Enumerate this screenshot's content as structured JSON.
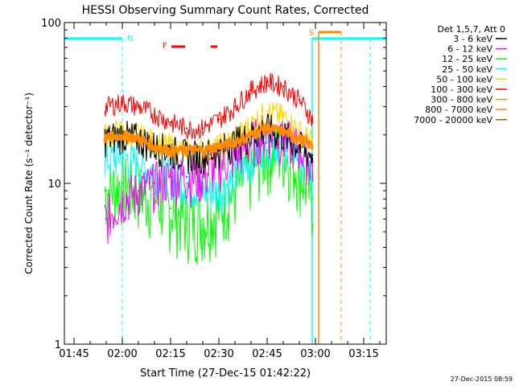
{
  "chart_data": {
    "type": "line",
    "title": "HESSI Observing Summary Count Rates, Corrected",
    "xlabel": "Start Time (27-Dec-15 01:42:22)",
    "ylabel": "Corrected Count Rate (s⁻¹ detector⁻¹)",
    "yscale": "log",
    "ylim": [
      1,
      100
    ],
    "xlim": [
      "01:42",
      "03:22"
    ],
    "x_ticks": [
      "01:45",
      "02:00",
      "02:15",
      "02:30",
      "02:45",
      "03:00",
      "03:15"
    ],
    "y_ticks": [
      "1",
      "10",
      "100"
    ],
    "legend_header": "Det 1,5,7, Att 0",
    "legend_position": "right",
    "timestamp": "27-Dec-2015 08:59",
    "time_points": [
      "01:55",
      "02:00",
      "02:05",
      "02:10",
      "02:15",
      "02:20",
      "02:25",
      "02:30",
      "02:35",
      "02:40",
      "02:45",
      "02:50",
      "02:55",
      "02:59"
    ],
    "series": [
      {
        "name": "3 - 6 keV",
        "color": "#000000",
        "values": [
          19,
          20,
          19,
          17,
          16,
          15,
          15,
          16,
          18,
          20,
          22,
          20,
          17,
          15
        ]
      },
      {
        "name": "6 - 12 keV",
        "color": "#ff00ff",
        "values": [
          6,
          8,
          9,
          10,
          11,
          11,
          11,
          13,
          15,
          18,
          21,
          19,
          17,
          13
        ]
      },
      {
        "name": "12 - 25 keV",
        "color": "#00ff00",
        "values": [
          9,
          10,
          9,
          8,
          7,
          6,
          6,
          7,
          9,
          12,
          16,
          16,
          12,
          8
        ]
      },
      {
        "name": "25 - 50 keV",
        "color": "#00ffff",
        "values": [
          14,
          15,
          13,
          12,
          11,
          10,
          9,
          9,
          11,
          14,
          18,
          18,
          15,
          11
        ]
      },
      {
        "name": "50 - 100 keV",
        "color": "#ffd700",
        "values": [
          20,
          21,
          20,
          18,
          17,
          16,
          16,
          17,
          19,
          23,
          28,
          26,
          21,
          18
        ]
      },
      {
        "name": "100 - 300 keV",
        "color": "#ff0000",
        "values": [
          30,
          32,
          30,
          27,
          24,
          22,
          22,
          25,
          30,
          38,
          43,
          40,
          33,
          25
        ]
      },
      {
        "name": "300 - 800 keV",
        "color": "#ff8c00",
        "values": [
          19,
          20,
          19,
          17,
          16,
          16,
          16,
          17,
          18,
          20,
          22,
          21,
          19,
          17
        ]
      },
      {
        "name": "800 - 7000 keV",
        "color": "#ff8c00",
        "values": []
      },
      {
        "name": "7000 - 20000 keV",
        "color": "#a06000",
        "values": []
      }
    ],
    "annotations": [
      {
        "label": "N",
        "color": "#00ffff",
        "time": "02:00",
        "kind": "night start"
      },
      {
        "label": "S",
        "color": "#ff8c00",
        "time": "03:01",
        "kind": "SAA"
      },
      {
        "label": "F",
        "color": "#ff0000",
        "time": "02:16",
        "kind": "flare"
      }
    ]
  }
}
